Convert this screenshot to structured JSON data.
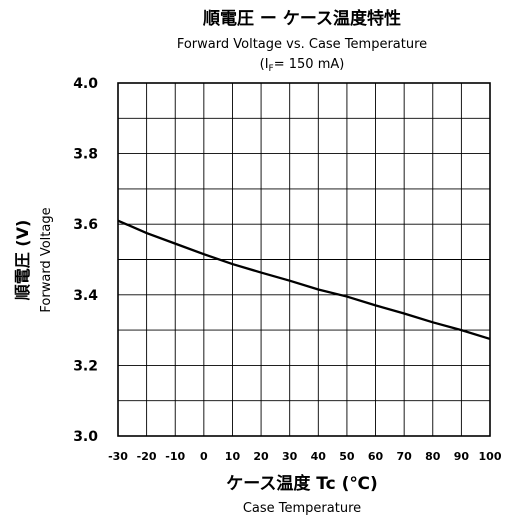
{
  "chart_data": {
    "type": "line",
    "title_jp": "順電圧 ー ケース温度特性",
    "title_en": "Forward Voltage vs. Case Temperature",
    "condition": "(I_F = 150 mA)",
    "condition_main": "(I",
    "condition_sub": "F",
    "condition_tail": "= 150 mA)",
    "ylabel_jp": "順電圧 (V)",
    "ylabel_en": "Forward Voltage",
    "xlabel_jp": "ケース温度 Tc (℃)",
    "xlabel_en": "Case Temperature",
    "x_ticks": [
      -30,
      -20,
      -10,
      0,
      10,
      20,
      30,
      40,
      50,
      60,
      70,
      80,
      90,
      100
    ],
    "y_ticks": [
      3.0,
      3.2,
      3.4,
      3.6,
      3.8,
      4.0
    ],
    "y_tick_labels": [
      "3.0",
      "3.2",
      "3.4",
      "3.6",
      "3.8",
      "4.0"
    ],
    "xlim": [
      -30,
      100
    ],
    "ylim": [
      3.0,
      4.0
    ],
    "grid": true,
    "series": [
      {
        "x": [
          -30,
          -20,
          -10,
          0,
          10,
          20,
          30,
          40,
          50,
          60,
          70,
          80,
          90,
          100
        ],
        "values": [
          3.61,
          3.575,
          3.545,
          3.515,
          3.487,
          3.463,
          3.44,
          3.415,
          3.395,
          3.37,
          3.347,
          3.322,
          3.3,
          3.275
        ]
      }
    ]
  }
}
